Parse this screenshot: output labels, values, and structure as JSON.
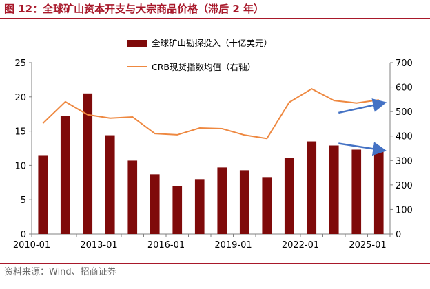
{
  "title": "图 12：全球矿山资本开支与大宗商品价格（滞后 2 年）",
  "source": "资料来源：Wind、招商证券",
  "colors": {
    "bar": "#7f0a0a",
    "line": "#ee8840",
    "arrow": "#4472c4",
    "title": "#a8182a"
  },
  "chart_data": {
    "type": "bar+line",
    "title": "图 12：全球矿山资本开支与大宗商品价格（滞后 2 年）",
    "categories": [
      "2010",
      "2011",
      "2012",
      "2013",
      "2014",
      "2015",
      "2016",
      "2017",
      "2018",
      "2019",
      "2020",
      "2021",
      "2022",
      "2023",
      "2024",
      "2025"
    ],
    "x_tick_labels": [
      "2010-01",
      "2013-01",
      "2016-01",
      "2019-01",
      "2022-01",
      "2025-01"
    ],
    "x_tick_indices": [
      0,
      3,
      6,
      9,
      12,
      15
    ],
    "left_axis": {
      "range": [
        0,
        25
      ],
      "ticks": [
        0,
        5,
        10,
        15,
        20,
        25
      ]
    },
    "right_axis": {
      "range": [
        0,
        700
      ],
      "ticks": [
        0,
        100,
        200,
        300,
        400,
        500,
        600,
        700
      ]
    },
    "series": [
      {
        "name": "全球矿山勘探投入（十亿美元）",
        "type": "bar",
        "axis": "left",
        "values": [
          11.5,
          17.2,
          20.5,
          14.4,
          10.7,
          8.7,
          7.0,
          8.0,
          9.7,
          9.3,
          8.3,
          11.1,
          13.5,
          12.9,
          12.3,
          12.0
        ]
      },
      {
        "name": "CRB现货指数均值（右轴）",
        "type": "line",
        "axis": "right",
        "values": [
          452,
          540,
          487,
          473,
          478,
          410,
          405,
          433,
          430,
          404,
          390,
          538,
          593,
          545,
          535,
          548
        ]
      }
    ],
    "annotations": [
      {
        "type": "arrow",
        "from": [
          13.2,
          495
        ],
        "to": [
          15.2,
          535
        ],
        "axis": "right"
      },
      {
        "type": "arrow",
        "from": [
          13.2,
          13.2
        ],
        "to": [
          15.2,
          12.2
        ],
        "axis": "left"
      }
    ]
  }
}
